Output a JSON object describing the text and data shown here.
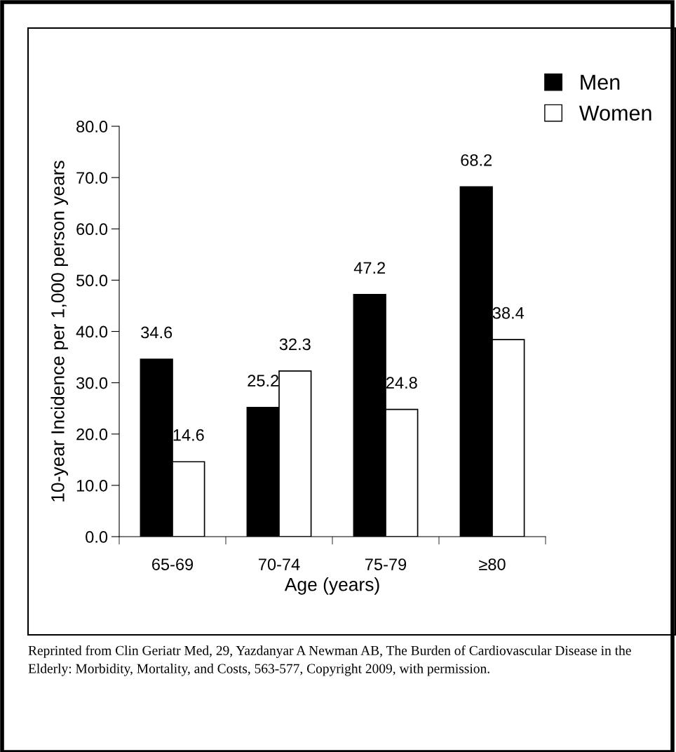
{
  "chart_data": {
    "type": "bar",
    "xlabel": "Age (years)",
    "ylabel": "10-year Incidence per 1,000 person years",
    "categories": [
      "65-69",
      "70-74",
      "75-79",
      "≥80"
    ],
    "series": [
      {
        "name": "Men",
        "color": "#000000",
        "values": [
          34.6,
          25.2,
          47.2,
          68.2
        ]
      },
      {
        "name": "Women",
        "color": "#ffffff",
        "values": [
          14.6,
          32.3,
          24.8,
          38.4
        ]
      }
    ],
    "ylim": [
      0,
      80
    ],
    "yticks": [
      {
        "value": 0,
        "label": "0.0"
      },
      {
        "value": 10,
        "label": "10.0"
      },
      {
        "value": 20,
        "label": "20.0"
      },
      {
        "value": 30,
        "label": "30.0"
      },
      {
        "value": 40,
        "label": "40.0"
      },
      {
        "value": 50,
        "label": "50.0"
      },
      {
        "value": 60,
        "label": "60.0"
      },
      {
        "value": 70,
        "label": "70.0"
      },
      {
        "value": 80,
        "label": "80.0"
      }
    ],
    "data_labels": true,
    "grid": false,
    "legend": "top right",
    "annotations": [
      "Reprinted from Clin Geriatr Med, 29, Yazdanyar A Newman AB, The Burden of Cardiovascular Disease in the Elderly: Morbidity, Mortality, and Costs, 563-577, Copyright 2009, with permission."
    ]
  }
}
